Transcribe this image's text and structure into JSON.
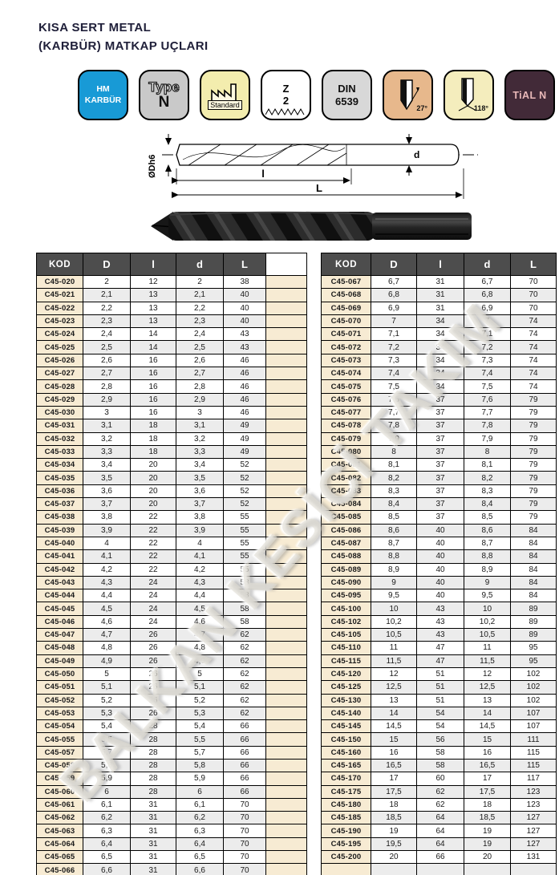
{
  "page": {
    "title_line1": "KISA SERT METAL",
    "title_line2": "(KARBÜR) MATKAP UÇLARI",
    "watermark": "BALKAN KESİCİ TAKIM"
  },
  "badges": [
    {
      "name": "hm-karbur",
      "line1": "HM",
      "line2": "KARBÜR",
      "bg": "#189ad6",
      "fg": "#ffffff"
    },
    {
      "name": "type-n",
      "line1": "Type",
      "line2": "N",
      "bg": "#c9c9c9",
      "fg": "#111111"
    },
    {
      "name": "standard",
      "label": "Standard",
      "bg": "#f3edae",
      "fg": "#111111"
    },
    {
      "name": "z2",
      "line1": "Z",
      "line2": "2",
      "bg": "#ffffff",
      "fg": "#111111"
    },
    {
      "name": "din-6539",
      "line1": "DIN",
      "line2": "6539",
      "bg": "#d8d8d8",
      "fg": "#111111"
    },
    {
      "name": "helix-angle",
      "label": "27°",
      "bg": "#e7b88c",
      "fg": "#111111"
    },
    {
      "name": "point-angle",
      "label": "118°",
      "bg": "#f4edbd",
      "fg": "#111111"
    },
    {
      "name": "tialn-coating",
      "label": "TiAL N",
      "bg": "#422a38",
      "fg": "#e9b9b9"
    }
  ],
  "diagram": {
    "dim_diameter": "ØDh6",
    "dim_flute": "l",
    "dim_total": "L",
    "dim_shank": "d"
  },
  "table": {
    "headers": [
      "KOD",
      "D",
      "l",
      "d",
      "L"
    ],
    "left_rows": [
      [
        "C45-020",
        "2",
        "12",
        "2",
        "38"
      ],
      [
        "C45-021",
        "2,1",
        "13",
        "2,1",
        "40"
      ],
      [
        "C45-022",
        "2,2",
        "13",
        "2,2",
        "40"
      ],
      [
        "C45-023",
        "2,3",
        "13",
        "2,3",
        "40"
      ],
      [
        "C45-024",
        "2,4",
        "14",
        "2,4",
        "43"
      ],
      [
        "C45-025",
        "2,5",
        "14",
        "2,5",
        "43"
      ],
      [
        "C45-026",
        "2,6",
        "16",
        "2,6",
        "46"
      ],
      [
        "C45-027",
        "2,7",
        "16",
        "2,7",
        "46"
      ],
      [
        "C45-028",
        "2,8",
        "16",
        "2,8",
        "46"
      ],
      [
        "C45-029",
        "2,9",
        "16",
        "2,9",
        "46"
      ],
      [
        "C45-030",
        "3",
        "16",
        "3",
        "46"
      ],
      [
        "C45-031",
        "3,1",
        "18",
        "3,1",
        "49"
      ],
      [
        "C45-032",
        "3,2",
        "18",
        "3,2",
        "49"
      ],
      [
        "C45-033",
        "3,3",
        "18",
        "3,3",
        "49"
      ],
      [
        "C45-034",
        "3,4",
        "20",
        "3,4",
        "52"
      ],
      [
        "C45-035",
        "3,5",
        "20",
        "3,5",
        "52"
      ],
      [
        "C45-036",
        "3,6",
        "20",
        "3,6",
        "52"
      ],
      [
        "C45-037",
        "3,7",
        "20",
        "3,7",
        "52"
      ],
      [
        "C45-038",
        "3,8",
        "22",
        "3,8",
        "55"
      ],
      [
        "C45-039",
        "3,9",
        "22",
        "3,9",
        "55"
      ],
      [
        "C45-040",
        "4",
        "22",
        "4",
        "55"
      ],
      [
        "C45-041",
        "4,1",
        "22",
        "4,1",
        "55"
      ],
      [
        "C45-042",
        "4,2",
        "22",
        "4,2",
        "55"
      ],
      [
        "C45-043",
        "4,3",
        "24",
        "4,3",
        "58"
      ],
      [
        "C45-044",
        "4,4",
        "24",
        "4,4",
        "58"
      ],
      [
        "C45-045",
        "4,5",
        "24",
        "4,5",
        "58"
      ],
      [
        "C45-046",
        "4,6",
        "24",
        "4,6",
        "58"
      ],
      [
        "C45-047",
        "4,7",
        "26",
        "4,7",
        "62"
      ],
      [
        "C45-048",
        "4,8",
        "26",
        "4,8",
        "62"
      ],
      [
        "C45-049",
        "4,9",
        "26",
        "4,9",
        "62"
      ],
      [
        "C45-050",
        "5",
        "26",
        "5",
        "62"
      ],
      [
        "C45-051",
        "5,1",
        "26",
        "5,1",
        "62"
      ],
      [
        "C45-052",
        "5,2",
        "26",
        "5,2",
        "62"
      ],
      [
        "C45-053",
        "5,3",
        "26",
        "5,3",
        "62"
      ],
      [
        "C45-054",
        "5,4",
        "28",
        "5,4",
        "66"
      ],
      [
        "C45-055",
        "5,5",
        "28",
        "5,5",
        "66"
      ],
      [
        "C45-057",
        "5,7",
        "28",
        "5,7",
        "66"
      ],
      [
        "C45-058",
        "5,8",
        "28",
        "5,8",
        "66"
      ],
      [
        "C45-059",
        "5,9",
        "28",
        "5,9",
        "66"
      ],
      [
        "C45-060",
        "6",
        "28",
        "6",
        "66"
      ],
      [
        "C45-061",
        "6,1",
        "31",
        "6,1",
        "70"
      ],
      [
        "C45-062",
        "6,2",
        "31",
        "6,2",
        "70"
      ],
      [
        "C45-063",
        "6,3",
        "31",
        "6,3",
        "70"
      ],
      [
        "C45-064",
        "6,4",
        "31",
        "6,4",
        "70"
      ],
      [
        "C45-065",
        "6,5",
        "31",
        "6,5",
        "70"
      ],
      [
        "C45-066",
        "6,6",
        "31",
        "6,6",
        "70"
      ]
    ],
    "right_rows": [
      [
        "C45-067",
        "6,7",
        "31",
        "6,7",
        "70"
      ],
      [
        "C45-068",
        "6,8",
        "31",
        "6,8",
        "70"
      ],
      [
        "C45-069",
        "6,9",
        "31",
        "6,9",
        "70"
      ],
      [
        "C45-070",
        "7",
        "34",
        "7",
        "74"
      ],
      [
        "C45-071",
        "7,1",
        "34",
        "7,1",
        "74"
      ],
      [
        "C45-072",
        "7,2",
        "34",
        "7,2",
        "74"
      ],
      [
        "C45-073",
        "7,3",
        "34",
        "7,3",
        "74"
      ],
      [
        "C45-074",
        "7,4",
        "34",
        "7,4",
        "74"
      ],
      [
        "C45-075",
        "7,5",
        "34",
        "7,5",
        "74"
      ],
      [
        "C45-076",
        "7,6",
        "37",
        "7,6",
        "79"
      ],
      [
        "C45-077",
        "7,7",
        "37",
        "7,7",
        "79"
      ],
      [
        "C45-078",
        "7,8",
        "37",
        "7,8",
        "79"
      ],
      [
        "C45-079",
        "7,9",
        "37",
        "7,9",
        "79"
      ],
      [
        "C45-080",
        "8",
        "37",
        "8",
        "79"
      ],
      [
        "C45-081",
        "8,1",
        "37",
        "8,1",
        "79"
      ],
      [
        "C45-082",
        "8,2",
        "37",
        "8,2",
        "79"
      ],
      [
        "C45-083",
        "8,3",
        "37",
        "8,3",
        "79"
      ],
      [
        "C45-084",
        "8,4",
        "37",
        "8,4",
        "79"
      ],
      [
        "C45-085",
        "8,5",
        "37",
        "8,5",
        "79"
      ],
      [
        "C45-086",
        "8,6",
        "40",
        "8,6",
        "84"
      ],
      [
        "C45-087",
        "8,7",
        "40",
        "8,7",
        "84"
      ],
      [
        "C45-088",
        "8,8",
        "40",
        "8,8",
        "84"
      ],
      [
        "C45-089",
        "8,9",
        "40",
        "8,9",
        "84"
      ],
      [
        "C45-090",
        "9",
        "40",
        "9",
        "84"
      ],
      [
        "C45-095",
        "9,5",
        "40",
        "9,5",
        "84"
      ],
      [
        "C45-100",
        "10",
        "43",
        "10",
        "89"
      ],
      [
        "C45-102",
        "10,2",
        "43",
        "10,2",
        "89"
      ],
      [
        "C45-105",
        "10,5",
        "43",
        "10,5",
        "89"
      ],
      [
        "C45-110",
        "11",
        "47",
        "11",
        "95"
      ],
      [
        "C45-115",
        "11,5",
        "47",
        "11,5",
        "95"
      ],
      [
        "C45-120",
        "12",
        "51",
        "12",
        "102"
      ],
      [
        "C45-125",
        "12,5",
        "51",
        "12,5",
        "102"
      ],
      [
        "C45-130",
        "13",
        "51",
        "13",
        "102"
      ],
      [
        "C45-140",
        "14",
        "54",
        "14",
        "107"
      ],
      [
        "C45-145",
        "14,5",
        "54",
        "14,5",
        "107"
      ],
      [
        "C45-150",
        "15",
        "56",
        "15",
        "111"
      ],
      [
        "C45-160",
        "16",
        "58",
        "16",
        "115"
      ],
      [
        "C45-165",
        "16,5",
        "58",
        "16,5",
        "115"
      ],
      [
        "C45-170",
        "17",
        "60",
        "17",
        "117"
      ],
      [
        "C45-175",
        "17,5",
        "62",
        "17,5",
        "123"
      ],
      [
        "C45-180",
        "18",
        "62",
        "18",
        "123"
      ],
      [
        "C45-185",
        "18,5",
        "64",
        "18,5",
        "127"
      ],
      [
        "C45-190",
        "19",
        "64",
        "19",
        "127"
      ],
      [
        "C45-195",
        "19,5",
        "64",
        "19",
        "127"
      ],
      [
        "C45-200",
        "20",
        "66",
        "20",
        "131"
      ],
      [
        "",
        "",
        "",
        "",
        ""
      ]
    ]
  }
}
